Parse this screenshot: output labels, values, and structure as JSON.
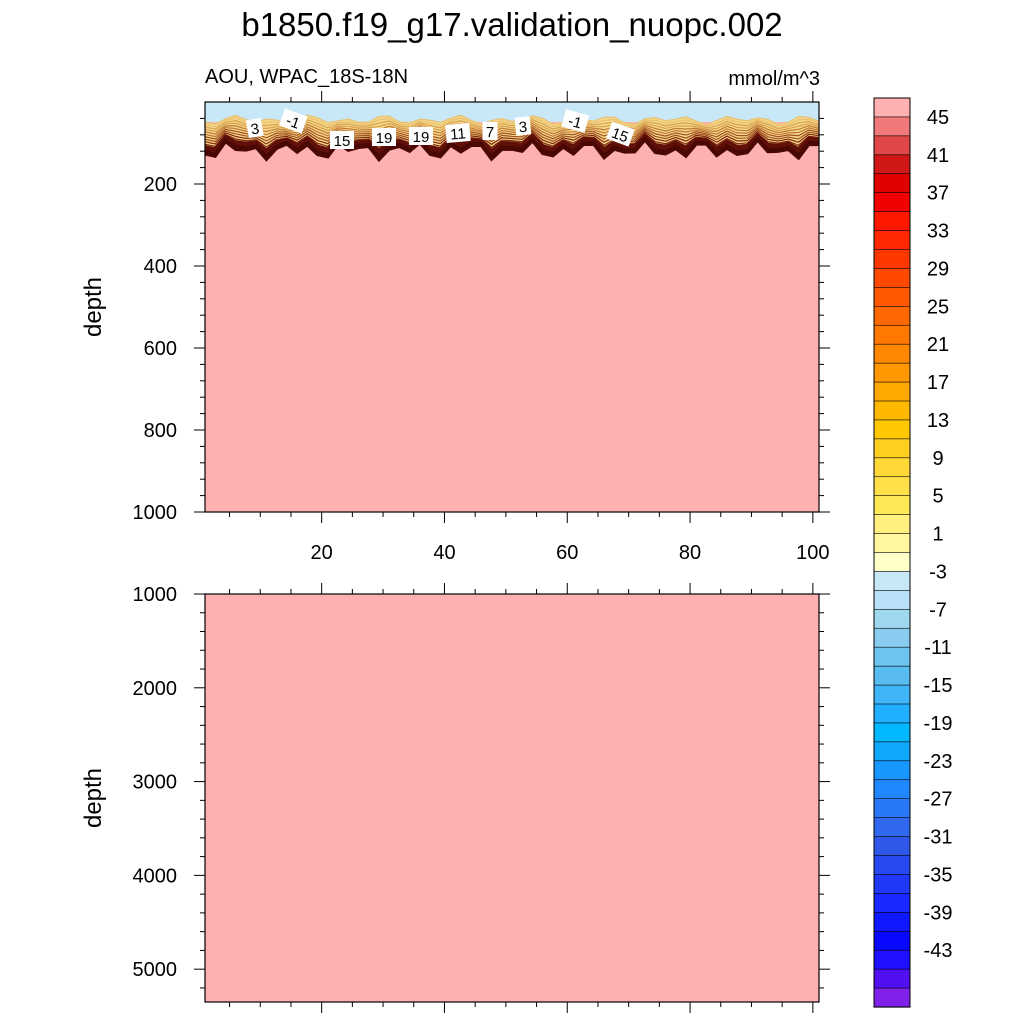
{
  "title": "b1850.f19_g17.validation_nuopc.002",
  "subtitle_left": "AOU, WPAC_18S-18N",
  "units": "mmol/m^3",
  "colorbar": {
    "labels": [
      "45",
      "41",
      "37",
      "33",
      "29",
      "25",
      "21",
      "17",
      "13",
      "9",
      "5",
      "1",
      "-3",
      "-7",
      "-11",
      "-15",
      "-19",
      "-23",
      "-27",
      "-31",
      "-35",
      "-39",
      "-43"
    ],
    "colors": [
      "#ffb0b0",
      "#f07878",
      "#e04848",
      "#d01818",
      "#e00000",
      "#f00000",
      "#ff1800",
      "#ff2800",
      "#ff3800",
      "#ff4800",
      "#ff5800",
      "#ff6800",
      "#ff7800",
      "#ff8800",
      "#ff9800",
      "#ffa800",
      "#ffb800",
      "#ffc800",
      "#ffd020",
      "#ffd838",
      "#ffe048",
      "#ffe858",
      "#fff080",
      "#fff8a0",
      "#ffffc8",
      "#c8e8f8",
      "#b8e0f8",
      "#a0d8f0",
      "#88ccf0",
      "#70c4f0",
      "#58bcf0",
      "#40b4f8",
      "#20b0ff",
      "#00b8ff",
      "#10a8ff",
      "#1898ff",
      "#2088ff",
      "#2878f8",
      "#3068f0",
      "#3058e8",
      "#2848f0",
      "#2038f8",
      "#1828ff",
      "#1018ff",
      "#0808ff",
      "#2010ff",
      "#5010f0",
      "#8020e8"
    ]
  },
  "chart_data": [
    {
      "type": "heatmap",
      "panel": "upper",
      "ylabel": "depth",
      "ylim": [
        0,
        1000
      ],
      "xlim": [
        1,
        101
      ],
      "xticks": [
        "20",
        "40",
        "60",
        "80",
        "100"
      ],
      "yticks": [
        "200",
        "400",
        "600",
        "800",
        "1000"
      ],
      "fill_below_thermocline": "45",
      "surface_layer": "-3",
      "contour_labels": [
        "3",
        "-1",
        "15",
        "19",
        "19",
        "11",
        "7",
        "3",
        "-1",
        "15"
      ]
    },
    {
      "type": "heatmap",
      "panel": "lower",
      "ylabel": "depth",
      "ylim": [
        1000,
        5350
      ],
      "xlim": [
        1,
        101
      ],
      "yticks": [
        "1000",
        "2000",
        "3000",
        "4000",
        "5000"
      ],
      "fill": "45"
    }
  ]
}
